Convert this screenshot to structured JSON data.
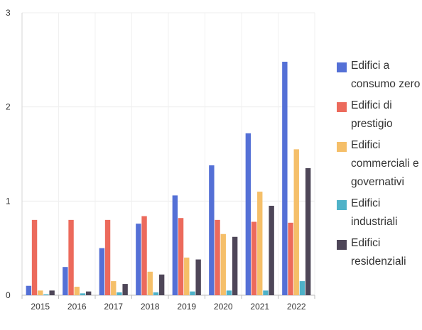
{
  "chart_data": {
    "type": "bar",
    "categories": [
      "2015",
      "2016",
      "2017",
      "2018",
      "2019",
      "2020",
      "2021",
      "2022"
    ],
    "ylim": [
      0,
      3
    ],
    "yticks": [
      0,
      1,
      2,
      3
    ],
    "grid": true,
    "legend_position": "right",
    "series": [
      {
        "name": "Edifici a consumo zero",
        "color": "#5470d6",
        "values": [
          0.1,
          0.3,
          0.5,
          0.76,
          1.06,
          1.38,
          1.72,
          2.48
        ]
      },
      {
        "name": "Edifici di prestigio",
        "color": "#ec6a5c",
        "values": [
          0.8,
          0.8,
          0.8,
          0.84,
          0.82,
          0.8,
          0.78,
          0.77
        ]
      },
      {
        "name": "Edifici commerciali e governativi",
        "color": "#f5bf69",
        "values": [
          0.05,
          0.09,
          0.15,
          0.25,
          0.4,
          0.65,
          1.1,
          1.55
        ]
      },
      {
        "name": "Edifici industriali",
        "color": "#4fb2c8",
        "values": [
          0.01,
          0.02,
          0.03,
          0.03,
          0.04,
          0.05,
          0.05,
          0.15
        ]
      },
      {
        "name": "Edifici residenziali",
        "color": "#4e4658",
        "values": [
          0.05,
          0.04,
          0.12,
          0.22,
          0.38,
          0.62,
          0.95,
          1.35
        ]
      }
    ]
  }
}
